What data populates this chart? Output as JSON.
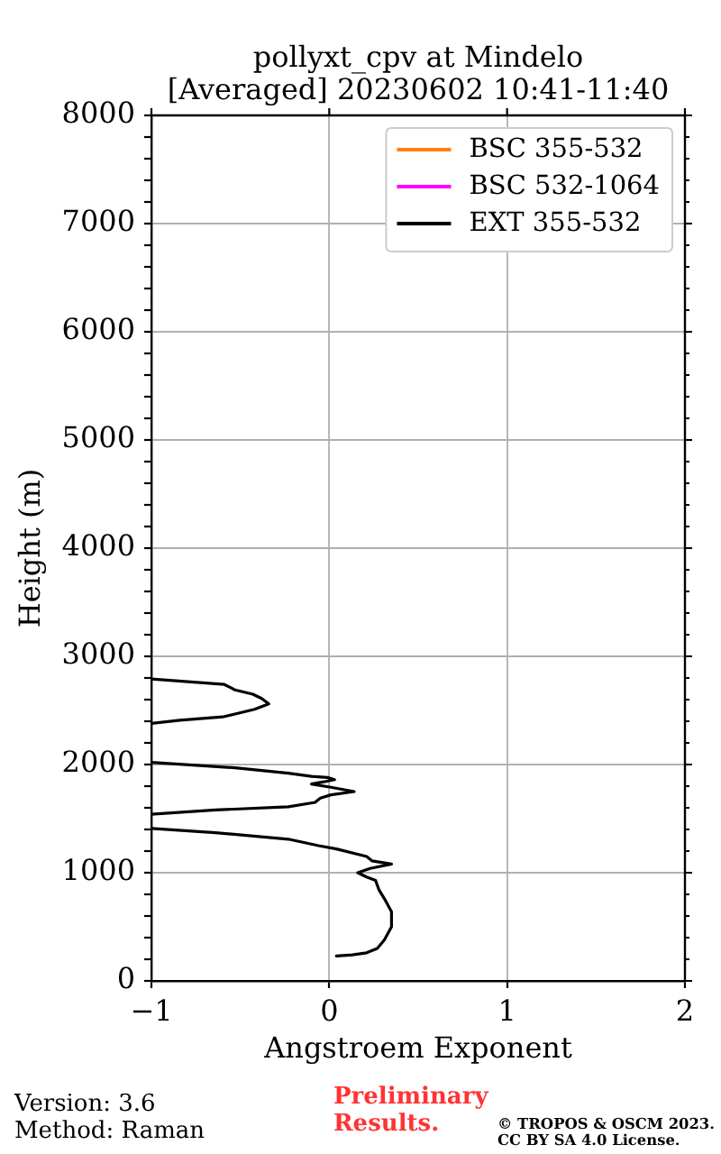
{
  "chart_data": {
    "type": "line",
    "title": "pollyxt_cpv at Mindelo\n[Averaged] 20230602 10:41-11:40",
    "xlabel": "Angstroem Exponent",
    "ylabel": "Height (m)",
    "series": [
      {
        "name": "BSC 355-532",
        "color": "#ff7f0e"
      },
      {
        "name": "BSC 532-1064",
        "color": "#ff00ff"
      },
      {
        "name": "EXT 355-532",
        "color": "#000000",
        "x": [
          0.04,
          0.13,
          0.21,
          0.27,
          0.31,
          0.35,
          0.35,
          0.31,
          0.28,
          0.26,
          0.21,
          0.16,
          0.23,
          0.35,
          0.24,
          0.21,
          0.04,
          -0.06,
          -0.23,
          -0.64,
          -1,
          null,
          -1,
          -0.64,
          -0.23,
          -0.08,
          -0.05,
          0.01,
          0.14,
          0.01,
          -0.1,
          -0.03,
          0.03,
          -0.01,
          -0.1,
          -0.23,
          -0.53,
          -1,
          null,
          -1,
          -0.84,
          -0.6,
          -0.42,
          -0.34,
          -0.38,
          -0.43,
          -0.53,
          -0.59,
          -1
        ],
        "values": [
          230,
          240,
          260,
          300,
          380,
          500,
          640,
          760,
          840,
          930,
          960,
          1000,
          1040,
          1080,
          1110,
          1150,
          1220,
          1250,
          1310,
          1370,
          1410,
          null,
          1540,
          1580,
          1610,
          1650,
          1690,
          1720,
          1750,
          1790,
          1820,
          1840,
          1860,
          1880,
          1890,
          1920,
          1970,
          2020,
          null,
          2380,
          2410,
          2440,
          2510,
          2560,
          2610,
          2650,
          2690,
          2740,
          2790
        ]
      }
    ],
    "xlim": [
      -1,
      2
    ],
    "xticks": [
      -1,
      0,
      1,
      2
    ],
    "ylim": [
      0,
      8000
    ],
    "yticks": [
      0,
      {
        "value": 200,
        "label": null
      },
      {
        "value": 400,
        "label": null
      },
      {
        "value": 600,
        "label": null
      },
      {
        "value": 800,
        "label": null
      },
      1000,
      {
        "value": 1200,
        "label": null
      },
      {
        "value": 1400,
        "label": null
      },
      {
        "value": 1600,
        "label": null
      },
      {
        "value": 1800,
        "label": null
      },
      2000,
      {
        "value": 2200,
        "label": null
      },
      {
        "value": 2400,
        "label": null
      },
      {
        "value": 2600,
        "label": null
      },
      {
        "value": 2800,
        "label": null
      },
      3000,
      {
        "value": 3200,
        "label": null
      },
      {
        "value": 3400,
        "label": null
      },
      {
        "value": 3600,
        "label": null
      },
      {
        "value": 3800,
        "label": null
      },
      4000,
      {
        "value": 4200,
        "label": null
      },
      {
        "value": 4400,
        "label": null
      },
      {
        "value": 4600,
        "label": null
      },
      {
        "value": 4800,
        "label": null
      },
      5000,
      {
        "value": 5200,
        "label": null
      },
      {
        "value": 5400,
        "label": null
      },
      {
        "value": 5600,
        "label": null
      },
      {
        "value": 5800,
        "label": null
      },
      6000,
      {
        "value": 6200,
        "label": null
      },
      {
        "value": 6400,
        "label": null
      },
      {
        "value": 6600,
        "label": null
      },
      {
        "value": 6800,
        "label": null
      },
      7000,
      {
        "value": 7200,
        "label": null
      },
      {
        "value": 7400,
        "label": null
      },
      {
        "value": 7600,
        "label": null
      },
      {
        "value": 7800,
        "label": null
      },
      8000
    ],
    "grid": true,
    "legend": "top right",
    "annotations": [
      "Version: 3.6",
      "Method: Raman",
      "Preliminary Results.",
      "© TROPOS & OSCM 2023. CC BY SA 4.0 License."
    ]
  }
}
